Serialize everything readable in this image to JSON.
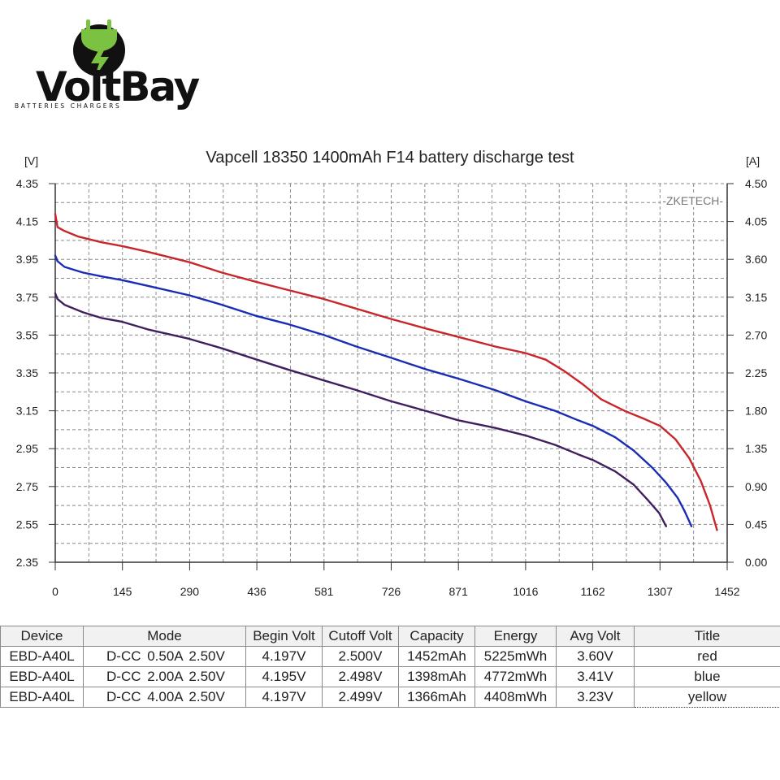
{
  "brand": {
    "name": "VoltBay",
    "tagline": "BATTERIES CHARGERS"
  },
  "chart": {
    "title": "Vapcell 18350 1400mAh F14 battery discharge test",
    "left_unit": "[V]",
    "right_unit": "[A]",
    "watermark": "-ZKETECH-"
  },
  "chart_data": {
    "type": "line",
    "title": "Vapcell 18350 1400mAh F14 battery discharge test",
    "xlabel": "",
    "ylabel": "[V]",
    "y2label": "[A]",
    "xlim": [
      0,
      1452
    ],
    "ylim": [
      2.35,
      4.35
    ],
    "y2lim": [
      0.0,
      4.5
    ],
    "x_ticks": [
      "0",
      "145",
      "290",
      "436",
      "581",
      "726",
      "871",
      "1016",
      "1162",
      "1307",
      "1452"
    ],
    "y_ticks": [
      "4.35",
      "4.15",
      "3.95",
      "3.75",
      "3.55",
      "3.35",
      "3.15",
      "2.95",
      "2.75",
      "2.55",
      "2.35"
    ],
    "y2_ticks": [
      "4.50",
      "4.05",
      "3.60",
      "3.15",
      "2.70",
      "2.25",
      "1.80",
      "1.35",
      "0.90",
      "0.45",
      "0.00"
    ],
    "grid": true,
    "series": [
      {
        "name": "red",
        "color": "#c8262a",
        "points": [
          [
            0,
            4.19
          ],
          [
            5,
            4.12
          ],
          [
            20,
            4.1
          ],
          [
            50,
            4.07
          ],
          [
            100,
            4.04
          ],
          [
            145,
            4.02
          ],
          [
            200,
            3.99
          ],
          [
            290,
            3.935
          ],
          [
            360,
            3.88
          ],
          [
            436,
            3.83
          ],
          [
            500,
            3.79
          ],
          [
            581,
            3.74
          ],
          [
            650,
            3.69
          ],
          [
            726,
            3.635
          ],
          [
            800,
            3.585
          ],
          [
            871,
            3.54
          ],
          [
            950,
            3.49
          ],
          [
            1016,
            3.455
          ],
          [
            1060,
            3.42
          ],
          [
            1100,
            3.36
          ],
          [
            1140,
            3.29
          ],
          [
            1180,
            3.21
          ],
          [
            1230,
            3.15
          ],
          [
            1270,
            3.11
          ],
          [
            1307,
            3.07
          ],
          [
            1340,
            3.0
          ],
          [
            1370,
            2.9
          ],
          [
            1395,
            2.78
          ],
          [
            1415,
            2.65
          ],
          [
            1430,
            2.52
          ]
        ]
      },
      {
        "name": "blue",
        "color": "#1a2cb4",
        "points": [
          [
            0,
            3.97
          ],
          [
            5,
            3.94
          ],
          [
            20,
            3.91
          ],
          [
            60,
            3.88
          ],
          [
            100,
            3.86
          ],
          [
            145,
            3.84
          ],
          [
            200,
            3.81
          ],
          [
            290,
            3.76
          ],
          [
            360,
            3.71
          ],
          [
            436,
            3.65
          ],
          [
            500,
            3.61
          ],
          [
            581,
            3.55
          ],
          [
            650,
            3.49
          ],
          [
            726,
            3.43
          ],
          [
            800,
            3.37
          ],
          [
            871,
            3.32
          ],
          [
            950,
            3.26
          ],
          [
            1016,
            3.2
          ],
          [
            1080,
            3.15
          ],
          [
            1130,
            3.1
          ],
          [
            1162,
            3.07
          ],
          [
            1210,
            3.01
          ],
          [
            1250,
            2.94
          ],
          [
            1290,
            2.85
          ],
          [
            1320,
            2.77
          ],
          [
            1345,
            2.69
          ],
          [
            1360,
            2.62
          ],
          [
            1375,
            2.54
          ]
        ]
      },
      {
        "name": "yellow",
        "color": "#3f1f5e",
        "points": [
          [
            0,
            3.77
          ],
          [
            5,
            3.74
          ],
          [
            20,
            3.71
          ],
          [
            60,
            3.67
          ],
          [
            100,
            3.64
          ],
          [
            145,
            3.62
          ],
          [
            200,
            3.58
          ],
          [
            290,
            3.53
          ],
          [
            360,
            3.48
          ],
          [
            436,
            3.42
          ],
          [
            500,
            3.37
          ],
          [
            581,
            3.31
          ],
          [
            650,
            3.26
          ],
          [
            726,
            3.2
          ],
          [
            800,
            3.15
          ],
          [
            871,
            3.1
          ],
          [
            950,
            3.06
          ],
          [
            1016,
            3.02
          ],
          [
            1080,
            2.97
          ],
          [
            1130,
            2.92
          ],
          [
            1162,
            2.89
          ],
          [
            1210,
            2.83
          ],
          [
            1250,
            2.76
          ],
          [
            1280,
            2.68
          ],
          [
            1305,
            2.61
          ],
          [
            1320,
            2.54
          ]
        ]
      }
    ]
  },
  "table": {
    "headers": [
      "Device",
      "Mode",
      "Begin Volt",
      "Cutoff Volt",
      "Capacity",
      "Energy",
      "Avg Volt",
      "Title"
    ],
    "rows": [
      {
        "device": "EBD-A40L",
        "mode": "D-CC  0.50A  2.50V",
        "begin": "4.197V",
        "cutoff": "2.500V",
        "capacity": "1452mAh",
        "energy": "5225mWh",
        "avg": "3.60V",
        "title": "red"
      },
      {
        "device": "EBD-A40L",
        "mode": "D-CC  2.00A  2.50V",
        "begin": "4.195V",
        "cutoff": "2.498V",
        "capacity": "1398mAh",
        "energy": "4772mWh",
        "avg": "3.41V",
        "title": "blue"
      },
      {
        "device": "EBD-A40L",
        "mode": "D-CC  4.00A  2.50V",
        "begin": "4.197V",
        "cutoff": "2.499V",
        "capacity": "1366mAh",
        "energy": "4408mWh",
        "avg": "3.23V",
        "title": "yellow"
      }
    ]
  }
}
